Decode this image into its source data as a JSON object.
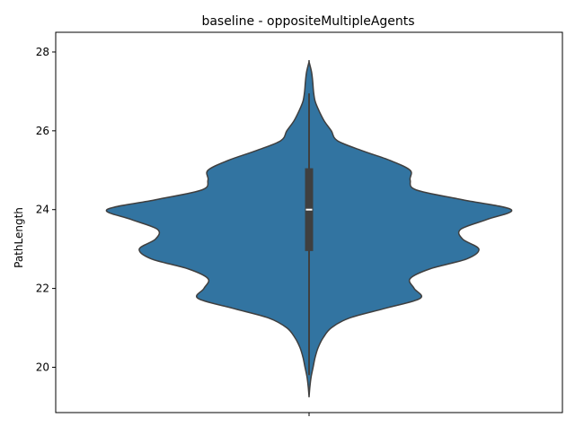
{
  "chart_data": {
    "type": "violin",
    "title": "baseline - oppositeMultipleAgents",
    "xlabel": "",
    "ylabel": "PathLength",
    "ylim": [
      18.85,
      28.5
    ],
    "yticks": [
      20,
      22,
      24,
      26,
      28
    ],
    "grid": false,
    "violin": {
      "color": "#3274a1",
      "edge_color": "#3f3f3f",
      "density": [
        {
          "y": 19.25,
          "w": 0.0
        },
        {
          "y": 19.5,
          "w": 0.004
        },
        {
          "y": 19.75,
          "w": 0.01
        },
        {
          "y": 20.0,
          "w": 0.02
        },
        {
          "y": 20.25,
          "w": 0.03
        },
        {
          "y": 20.5,
          "w": 0.045
        },
        {
          "y": 20.75,
          "w": 0.07
        },
        {
          "y": 21.0,
          "w": 0.11
        },
        {
          "y": 21.25,
          "w": 0.2
        },
        {
          "y": 21.5,
          "w": 0.38
        },
        {
          "y": 21.75,
          "w": 0.55
        },
        {
          "y": 22.0,
          "w": 0.52
        },
        {
          "y": 22.25,
          "w": 0.5
        },
        {
          "y": 22.5,
          "w": 0.6
        },
        {
          "y": 22.75,
          "w": 0.78
        },
        {
          "y": 23.0,
          "w": 0.84
        },
        {
          "y": 23.25,
          "w": 0.76
        },
        {
          "y": 23.5,
          "w": 0.75
        },
        {
          "y": 23.75,
          "w": 0.88
        },
        {
          "y": 24.0,
          "w": 1.0
        },
        {
          "y": 24.25,
          "w": 0.76
        },
        {
          "y": 24.5,
          "w": 0.53
        },
        {
          "y": 24.75,
          "w": 0.5
        },
        {
          "y": 25.0,
          "w": 0.5
        },
        {
          "y": 25.25,
          "w": 0.4
        },
        {
          "y": 25.5,
          "w": 0.26
        },
        {
          "y": 25.75,
          "w": 0.14
        },
        {
          "y": 26.0,
          "w": 0.11
        },
        {
          "y": 26.25,
          "w": 0.075
        },
        {
          "y": 26.5,
          "w": 0.05
        },
        {
          "y": 26.75,
          "w": 0.03
        },
        {
          "y": 27.0,
          "w": 0.022
        },
        {
          "y": 27.25,
          "w": 0.018
        },
        {
          "y": 27.5,
          "w": 0.012
        },
        {
          "y": 27.75,
          "w": 0.0
        }
      ],
      "whisker_low": 19.8,
      "q1": 22.95,
      "median": 24.0,
      "q3": 25.05,
      "whisker_high": 26.95
    }
  }
}
